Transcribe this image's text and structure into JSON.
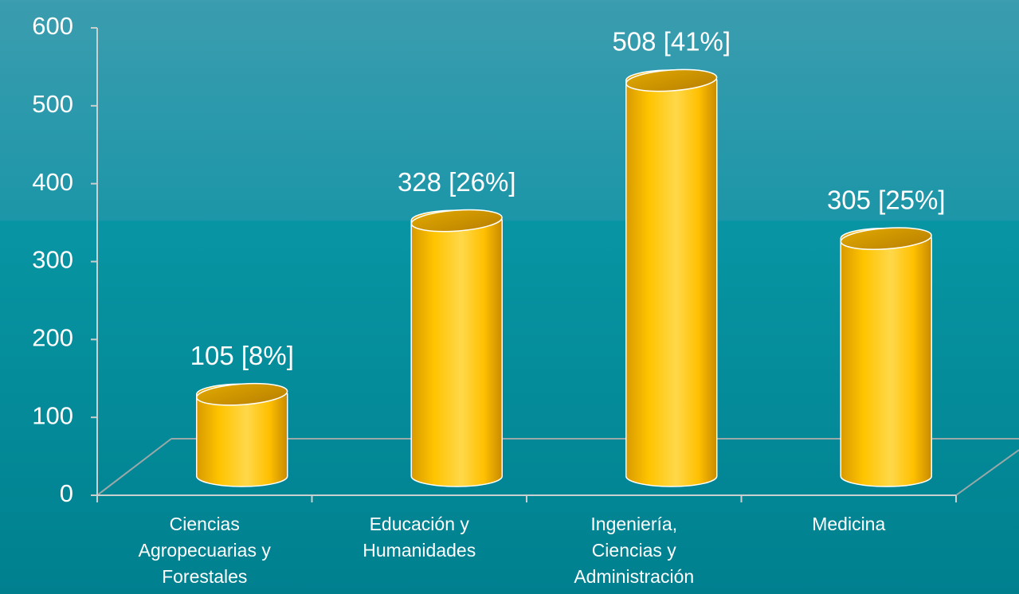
{
  "chart_data": {
    "type": "bar",
    "categories": [
      "Ciencias Agropecuarias y Forestales",
      "Educación y Humanidades",
      "Ingeniería, Ciencias y Administración",
      "Medicina"
    ],
    "values": [
      105,
      328,
      508,
      305
    ],
    "value_labels": [
      "105 [8%]",
      "328 [26%]",
      "508 [41%]",
      "305 [25%]"
    ],
    "color": "#ffc000",
    "ylim": [
      0,
      600
    ],
    "yticks": [
      0,
      100,
      200,
      300,
      400,
      500,
      600
    ]
  }
}
